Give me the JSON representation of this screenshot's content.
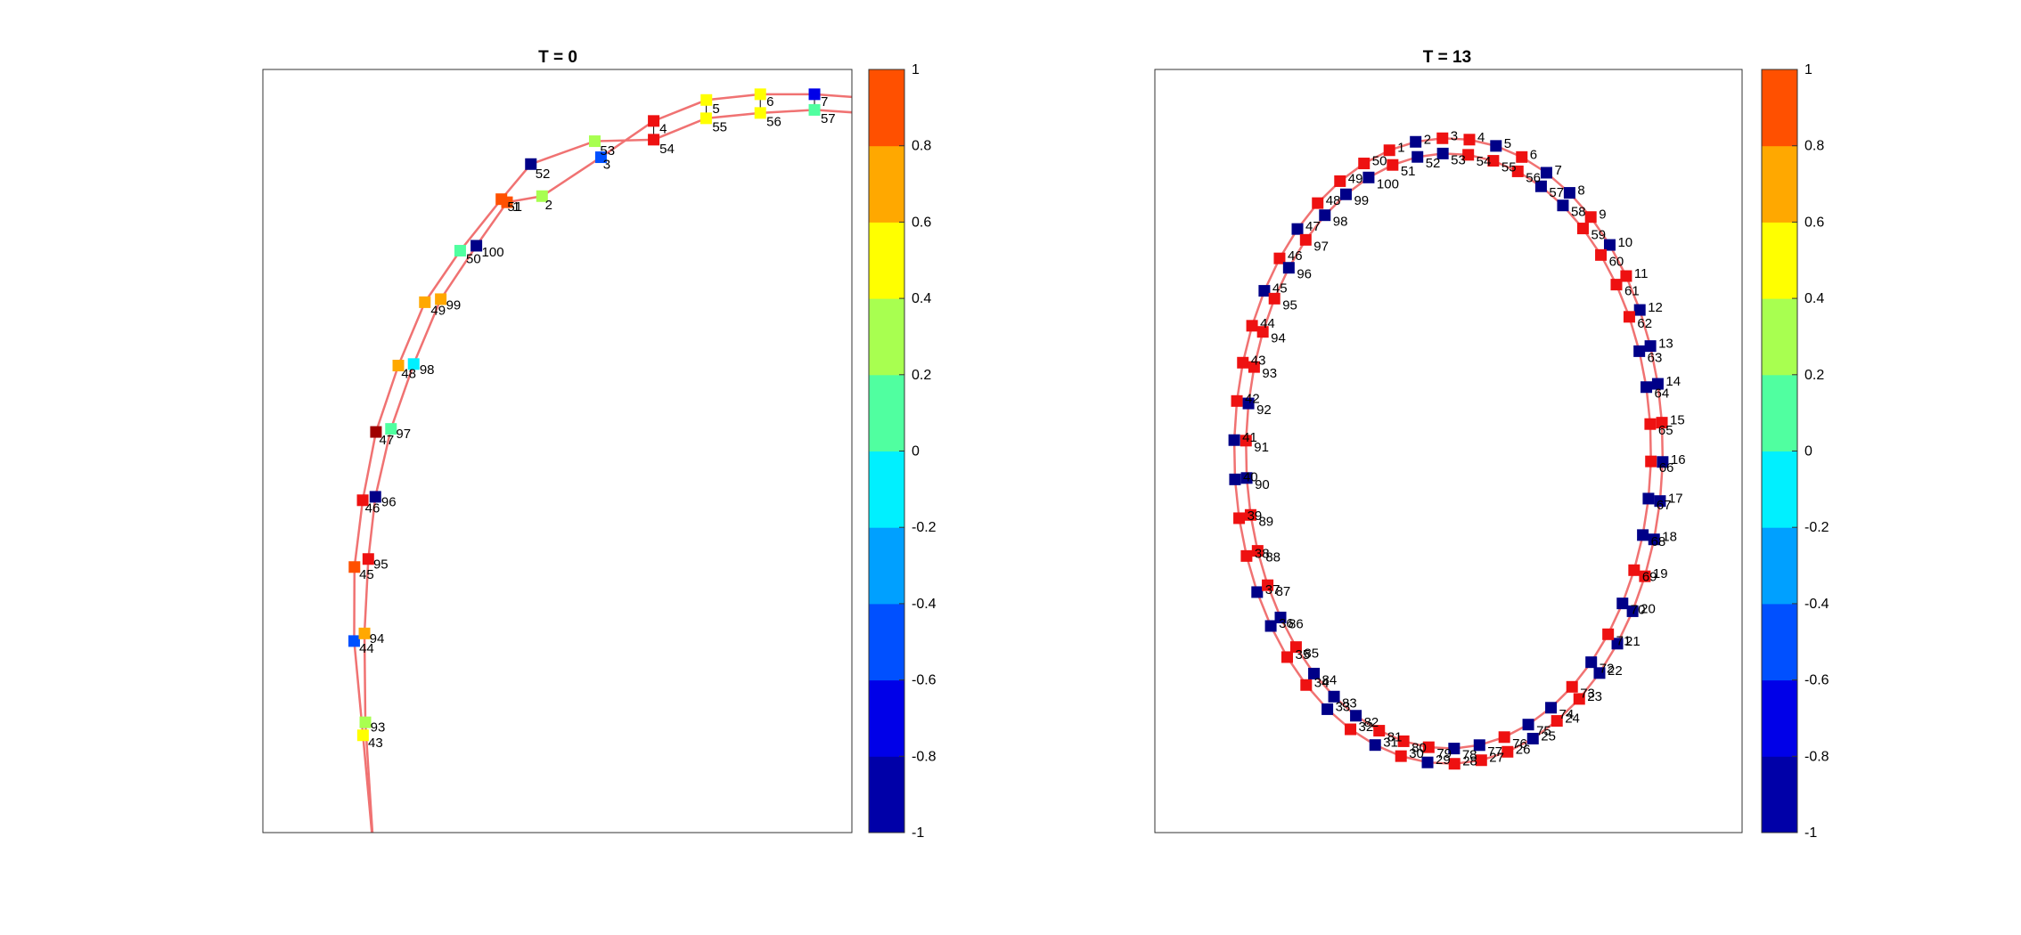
{
  "chart_data": [
    {
      "type": "scatter",
      "title": "T = 0",
      "xlabel": "",
      "ylabel": "",
      "axes_visible": false,
      "xlim": [
        -1.0,
        1.0
      ],
      "ylim": [
        -1.0,
        1.0
      ],
      "grid": false,
      "edge_color": "#f07272",
      "marker": "square",
      "colorbar": {
        "range": [
          -1,
          1
        ],
        "ticks": [
          "1",
          "0.8",
          "0.6",
          "0.4",
          "0.2",
          "0",
          "-0.2",
          "-0.4",
          "-0.6",
          "-0.8",
          "-1"
        ],
        "colors": [
          "#0000a8",
          "#0000e8",
          "#0050ff",
          "#00a0ff",
          "#00f0ff",
          "#50ffa0",
          "#a8ff50",
          "#ffff00",
          "#ffa800",
          "#ff5000"
        ]
      },
      "nodes": [
        {
          "id": "2",
          "x": -0.052,
          "y": 0.668,
          "v": 0.3
        },
        {
          "id": "3",
          "x": 0.148,
          "y": 0.77,
          "v": -0.5
        },
        {
          "id": "4",
          "x": 0.327,
          "y": 0.865,
          "v": 0.95
        },
        {
          "id": "5",
          "x": 0.506,
          "y": 0.92,
          "v": 0.5
        },
        {
          "id": "6",
          "x": 0.689,
          "y": 0.935,
          "v": 0.5
        },
        {
          "id": "7",
          "x": 0.873,
          "y": 0.935,
          "v": -0.7
        },
        {
          "id": "43",
          "x": -0.66,
          "y": -0.745,
          "v": 0.5
        },
        {
          "id": "44",
          "x": -0.69,
          "y": -0.498,
          "v": -0.5
        },
        {
          "id": "45",
          "x": -0.689,
          "y": -0.304,
          "v": 0.9
        },
        {
          "id": "46",
          "x": -0.661,
          "y": -0.129,
          "v": 0.95
        },
        {
          "id": "47",
          "x": -0.616,
          "y": 0.05,
          "v": 1.2
        },
        {
          "id": "48",
          "x": -0.54,
          "y": 0.224,
          "v": 0.7
        },
        {
          "id": "49",
          "x": -0.45,
          "y": 0.39,
          "v": 0.7
        },
        {
          "id": "50",
          "x": -0.33,
          "y": 0.525,
          "v": 0.1
        },
        {
          "id": "51",
          "x": -0.19,
          "y": 0.66,
          "v": 0.9
        },
        {
          "id": "52",
          "x": -0.09,
          "y": 0.752,
          "v": -0.95
        },
        {
          "id": "53",
          "x": 0.127,
          "y": 0.812,
          "v": 0.3
        },
        {
          "id": "54",
          "x": 0.327,
          "y": 0.816,
          "v": 0.95
        },
        {
          "id": "55",
          "x": 0.505,
          "y": 0.872,
          "v": 0.5
        },
        {
          "id": "56",
          "x": 0.689,
          "y": 0.886,
          "v": 0.5
        },
        {
          "id": "57",
          "x": 0.873,
          "y": 0.894,
          "v": 0.0
        },
        {
          "id": "93",
          "x": -0.652,
          "y": -0.711,
          "v": 0.3
        },
        {
          "id": "94",
          "x": -0.655,
          "y": -0.478,
          "v": 0.7
        },
        {
          "id": "95",
          "x": -0.642,
          "y": -0.283,
          "v": 0.95
        },
        {
          "id": "96",
          "x": -0.618,
          "y": -0.12,
          "v": -0.95
        },
        {
          "id": "97",
          "x": -0.565,
          "y": 0.058,
          "v": 0.0
        },
        {
          "id": "98",
          "x": -0.488,
          "y": 0.228,
          "v": -0.1
        },
        {
          "id": "99",
          "x": -0.396,
          "y": 0.398,
          "v": 0.7
        },
        {
          "id": "100",
          "x": -0.275,
          "y": 0.538,
          "v": -0.95
        },
        {
          "id": "1",
          "x": -0.171,
          "y": 0.652,
          "v": 0.9
        }
      ],
      "labels": [
        {
          "id": "2",
          "x": -0.042,
          "y": 0.645
        },
        {
          "id": "3",
          "x": 0.155,
          "y": 0.751
        },
        {
          "id": "4",
          "x": 0.347,
          "y": 0.845
        },
        {
          "id": "5",
          "x": 0.526,
          "y": 0.897
        },
        {
          "id": "6",
          "x": 0.71,
          "y": 0.916
        },
        {
          "id": "7",
          "x": 0.894,
          "y": 0.916
        },
        {
          "id": "43",
          "x": -0.643,
          "y": -0.764
        },
        {
          "id": "44",
          "x": -0.673,
          "y": -0.517
        },
        {
          "id": "45",
          "x": -0.673,
          "y": -0.323
        },
        {
          "id": "46",
          "x": -0.653,
          "y": -0.149
        },
        {
          "id": "47",
          "x": -0.605,
          "y": 0.029
        },
        {
          "id": "48",
          "x": -0.53,
          "y": 0.203
        },
        {
          "id": "49",
          "x": -0.43,
          "y": 0.369
        },
        {
          "id": "50",
          "x": -0.31,
          "y": 0.504
        },
        {
          "id": "51",
          "x": -0.17,
          "y": 0.641
        },
        {
          "id": "52",
          "x": -0.075,
          "y": 0.727
        },
        {
          "id": "53",
          "x": 0.145,
          "y": 0.788
        },
        {
          "id": "54",
          "x": 0.347,
          "y": 0.792
        },
        {
          "id": "55",
          "x": 0.526,
          "y": 0.85
        },
        {
          "id": "56",
          "x": 0.71,
          "y": 0.864
        },
        {
          "id": "57",
          "x": 0.894,
          "y": 0.872
        },
        {
          "id": "93",
          "x": -0.635,
          "y": -0.724
        },
        {
          "id": "94",
          "x": -0.638,
          "y": -0.491
        },
        {
          "id": "95",
          "x": -0.625,
          "y": -0.296
        },
        {
          "id": "96",
          "x": -0.598,
          "y": -0.133
        },
        {
          "id": "97",
          "x": -0.548,
          "y": 0.045
        },
        {
          "id": "98",
          "x": -0.468,
          "y": 0.213
        },
        {
          "id": "99",
          "x": -0.378,
          "y": 0.383
        },
        {
          "id": "100",
          "x": -0.257,
          "y": 0.522
        },
        {
          "id": "1",
          "x": -0.152,
          "y": 0.641
        }
      ],
      "edges": [
        [
          -0.055,
          1.0,
          -0.67,
          -1.0
        ],
        [
          0.3,
          1.05,
          1.05,
          0.9
        ],
        [
          -0.14,
          1.0,
          -0.62,
          -1.0
        ],
        [
          0.95,
          0.93,
          1.05,
          0.91
        ]
      ],
      "rungs": [
        [
          "4",
          "54"
        ],
        [
          "5",
          "55"
        ],
        [
          "6",
          "56"
        ],
        [
          "7",
          "57"
        ]
      ]
    },
    {
      "type": "scatter",
      "title": "T = 13",
      "xlabel": "",
      "ylabel": "",
      "axes_visible": false,
      "xlim": [
        -1.0,
        1.0
      ],
      "ylim": [
        -1.0,
        1.0
      ],
      "grid": false,
      "edge_color": "#f07272",
      "marker": "square",
      "colorbar": {
        "range": [
          -1,
          1
        ],
        "ticks": [
          "1",
          "0.8",
          "0.6",
          "0.4",
          "0.2",
          "0",
          "-0.2",
          "-0.4",
          "-0.6",
          "-0.8",
          "-1"
        ],
        "colors": [
          "#0000a8",
          "#0000e8",
          "#0050ff",
          "#00a0ff",
          "#00f0ff",
          "#50ffa0",
          "#a8ff50",
          "#ffff00",
          "#ffa800",
          "#ff5000"
        ]
      },
      "ring": {
        "count": 50,
        "outer_ids_start": 1,
        "inner_ids_start": 51,
        "outer_r": [
          0.73,
          0.82
        ],
        "inner_r": [
          0.69,
          0.78
        ],
        "start_deg": 106,
        "step_deg": -7.2
      },
      "label_ids": [
        "1",
        "2",
        "3",
        "4",
        "5",
        "6",
        "7",
        "8",
        "9",
        "10",
        "11",
        "12",
        "13",
        "14",
        "15",
        "16",
        "17",
        "18",
        "19",
        "20",
        "21",
        "22",
        "23",
        "24",
        "25",
        "26",
        "27",
        "28",
        "29",
        "30",
        "31",
        "32",
        "33",
        "34",
        "35",
        "36",
        "37",
        "38",
        "39",
        "40",
        "41",
        "42",
        "43",
        "44",
        "45",
        "46",
        "47",
        "48",
        "49",
        "50",
        "51",
        "52",
        "53",
        "54",
        "55",
        "56",
        "57",
        "58",
        "59",
        "60",
        "61",
        "62",
        "63",
        "64",
        "65",
        "66",
        "67",
        "68",
        "69",
        "70",
        "71",
        "72",
        "73",
        "74",
        "75",
        "76",
        "77",
        "78",
        "79",
        "80",
        "81",
        "82",
        "83",
        "84",
        "85",
        "86",
        "87",
        "88",
        "89",
        "90",
        "91",
        "92",
        "93",
        "94",
        "95",
        "96",
        "97",
        "98",
        "99",
        "100"
      ],
      "pattern": "alternating",
      "values_outer": [
        1,
        -1,
        1,
        1,
        -1,
        1,
        -1,
        -1,
        1,
        -1,
        1,
        -1,
        -1,
        -1,
        1,
        -1,
        -1,
        -1,
        1,
        -1,
        -1,
        -1,
        1,
        1,
        -1,
        1,
        1,
        1,
        -1,
        1,
        -1,
        1,
        -1,
        1,
        1,
        -1,
        -1,
        1,
        1,
        -1,
        -1,
        1,
        1,
        1,
        -1,
        1,
        -1,
        1,
        1,
        1
      ],
      "values_inner": [
        1,
        -1,
        -1,
        1,
        1,
        1,
        -1,
        -1,
        1,
        1,
        1,
        1,
        -1,
        -1,
        1,
        1,
        -1,
        -1,
        1,
        -1,
        1,
        -1,
        1,
        -1,
        -1,
        1,
        -1,
        -1,
        1,
        1,
        1,
        -1,
        -1,
        -1,
        1,
        -1,
        1,
        1,
        1,
        -1,
        1,
        -1,
        1,
        1,
        1,
        -1,
        1,
        -1,
        -1,
        -1
      ]
    }
  ]
}
